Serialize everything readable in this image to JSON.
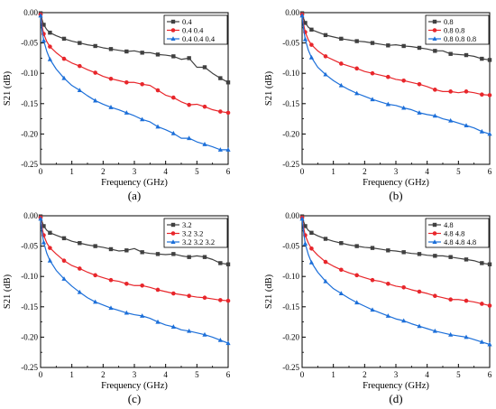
{
  "colors": {
    "black": "#404040",
    "red": "#e8262b",
    "blue": "#1c6fd9"
  },
  "icons": {
    "series_markers": [
      "square-marker-icon",
      "circle-marker-icon",
      "triangle-marker-icon"
    ]
  },
  "chart_data": [
    {
      "type": "line",
      "panel_label": "(a)",
      "xlabel": "Frequency (GHz)",
      "ylabel": "S21 (dB)",
      "xlim": [
        0,
        6
      ],
      "ylim": [
        -0.25,
        0
      ],
      "xticks": [
        "0",
        "1",
        "2",
        "3",
        "4",
        "5",
        "6"
      ],
      "yticks": [
        "0.00",
        "-0.05",
        "-0.10",
        "-0.15",
        "-0.20",
        "-0.25"
      ],
      "grid": false,
      "legend_position": "top-right",
      "x": [
        0,
        0.05,
        0.1,
        0.2,
        0.3,
        0.5,
        0.75,
        1,
        1.25,
        1.5,
        1.75,
        2,
        2.25,
        2.5,
        2.75,
        3,
        3.25,
        3.5,
        3.75,
        4,
        4.25,
        4.5,
        4.75,
        5,
        5.25,
        5.5,
        5.75,
        6
      ],
      "series": [
        {
          "name": "0.4",
          "color": "black",
          "marker": "square",
          "values": [
            -0.001,
            -0.012,
            -0.02,
            -0.028,
            -0.033,
            -0.038,
            -0.043,
            -0.047,
            -0.05,
            -0.053,
            -0.055,
            -0.058,
            -0.06,
            -0.062,
            -0.064,
            -0.063,
            -0.066,
            -0.066,
            -0.069,
            -0.07,
            -0.072,
            -0.077,
            -0.075,
            -0.09,
            -0.09,
            -0.1,
            -0.108,
            -0.115
          ]
        },
        {
          "name": "0.4  0.4",
          "color": "red",
          "marker": "circle",
          "values": [
            -0.003,
            -0.022,
            -0.035,
            -0.048,
            -0.056,
            -0.066,
            -0.076,
            -0.083,
            -0.088,
            -0.094,
            -0.099,
            -0.105,
            -0.109,
            -0.112,
            -0.115,
            -0.115,
            -0.118,
            -0.12,
            -0.128,
            -0.136,
            -0.14,
            -0.147,
            -0.152,
            -0.151,
            -0.155,
            -0.16,
            -0.163,
            -0.165
          ]
        },
        {
          "name": "0.4  0.4  0.4",
          "color": "blue",
          "marker": "triangle",
          "values": [
            -0.005,
            -0.03,
            -0.046,
            -0.064,
            -0.077,
            -0.093,
            -0.108,
            -0.12,
            -0.128,
            -0.137,
            -0.145,
            -0.151,
            -0.156,
            -0.16,
            -0.165,
            -0.17,
            -0.176,
            -0.18,
            -0.188,
            -0.193,
            -0.199,
            -0.207,
            -0.207,
            -0.213,
            -0.217,
            -0.221,
            -0.226,
            -0.226
          ]
        }
      ]
    },
    {
      "type": "line",
      "panel_label": "(b)",
      "xlabel": "Frequency (GHz)",
      "ylabel": "S21 (dB)",
      "xlim": [
        0,
        6
      ],
      "ylim": [
        -0.25,
        0
      ],
      "xticks": [
        "0",
        "1",
        "2",
        "3",
        "4",
        "5",
        "6"
      ],
      "yticks": [
        "0.00",
        "-0.05",
        "-0.10",
        "-0.15",
        "-0.20",
        "-0.25"
      ],
      "grid": false,
      "legend_position": "top-right",
      "x": [
        0,
        0.05,
        0.1,
        0.2,
        0.3,
        0.5,
        0.75,
        1,
        1.25,
        1.5,
        1.75,
        2,
        2.25,
        2.5,
        2.75,
        3,
        3.25,
        3.5,
        3.75,
        4,
        4.25,
        4.5,
        4.75,
        5,
        5.25,
        5.5,
        5.75,
        6
      ],
      "series": [
        {
          "name": "0.8",
          "color": "black",
          "marker": "square",
          "values": [
            -0.001,
            -0.01,
            -0.017,
            -0.024,
            -0.028,
            -0.032,
            -0.037,
            -0.04,
            -0.043,
            -0.045,
            -0.047,
            -0.048,
            -0.05,
            -0.052,
            -0.054,
            -0.053,
            -0.055,
            -0.056,
            -0.058,
            -0.06,
            -0.063,
            -0.063,
            -0.068,
            -0.069,
            -0.07,
            -0.072,
            -0.076,
            -0.078
          ]
        },
        {
          "name": "0.8  0.8",
          "color": "red",
          "marker": "circle",
          "values": [
            -0.003,
            -0.02,
            -0.032,
            -0.045,
            -0.053,
            -0.063,
            -0.072,
            -0.078,
            -0.084,
            -0.088,
            -0.092,
            -0.097,
            -0.1,
            -0.103,
            -0.106,
            -0.11,
            -0.112,
            -0.115,
            -0.118,
            -0.122,
            -0.127,
            -0.13,
            -0.13,
            -0.132,
            -0.13,
            -0.132,
            -0.135,
            -0.136
          ]
        },
        {
          "name": "0.8  0.8  0.8",
          "color": "blue",
          "marker": "triangle",
          "values": [
            -0.005,
            -0.028,
            -0.044,
            -0.062,
            -0.074,
            -0.09,
            -0.102,
            -0.112,
            -0.12,
            -0.127,
            -0.133,
            -0.138,
            -0.143,
            -0.147,
            -0.151,
            -0.153,
            -0.157,
            -0.16,
            -0.165,
            -0.168,
            -0.17,
            -0.175,
            -0.178,
            -0.182,
            -0.186,
            -0.19,
            -0.196,
            -0.2
          ]
        }
      ]
    },
    {
      "type": "line",
      "panel_label": "(c)",
      "xlabel": "Frequency (GHz)",
      "ylabel": "S21 (dB)",
      "xlim": [
        0,
        6
      ],
      "ylim": [
        -0.25,
        0
      ],
      "xticks": [
        "0",
        "1",
        "2",
        "3",
        "4",
        "5",
        "6"
      ],
      "yticks": [
        "0.00",
        "-0.05",
        "-0.10",
        "-0.15",
        "-0.20",
        "-0.25"
      ],
      "grid": false,
      "legend_position": "top-right",
      "x": [
        0,
        0.05,
        0.1,
        0.2,
        0.3,
        0.5,
        0.75,
        1,
        1.25,
        1.5,
        1.75,
        2,
        2.25,
        2.5,
        2.75,
        3,
        3.25,
        3.5,
        3.75,
        4,
        4.25,
        4.5,
        4.75,
        5,
        5.25,
        5.5,
        5.75,
        6
      ],
      "series": [
        {
          "name": "3.2",
          "color": "black",
          "marker": "square",
          "values": [
            -0.001,
            -0.01,
            -0.017,
            -0.024,
            -0.028,
            -0.032,
            -0.037,
            -0.042,
            -0.045,
            -0.048,
            -0.05,
            -0.052,
            -0.055,
            -0.058,
            -0.057,
            -0.054,
            -0.06,
            -0.062,
            -0.063,
            -0.064,
            -0.063,
            -0.066,
            -0.068,
            -0.066,
            -0.068,
            -0.072,
            -0.078,
            -0.08
          ]
        },
        {
          "name": "3.2  3.2",
          "color": "red",
          "marker": "circle",
          "values": [
            -0.003,
            -0.02,
            -0.032,
            -0.045,
            -0.053,
            -0.063,
            -0.074,
            -0.082,
            -0.087,
            -0.093,
            -0.098,
            -0.102,
            -0.106,
            -0.108,
            -0.112,
            -0.115,
            -0.115,
            -0.118,
            -0.122,
            -0.125,
            -0.128,
            -0.13,
            -0.132,
            -0.134,
            -0.135,
            -0.137,
            -0.139,
            -0.14
          ]
        },
        {
          "name": "3.2  3.2  3.2",
          "color": "blue",
          "marker": "triangle",
          "values": [
            -0.005,
            -0.028,
            -0.044,
            -0.062,
            -0.074,
            -0.09,
            -0.104,
            -0.116,
            -0.126,
            -0.135,
            -0.142,
            -0.147,
            -0.152,
            -0.156,
            -0.16,
            -0.163,
            -0.165,
            -0.169,
            -0.175,
            -0.18,
            -0.183,
            -0.188,
            -0.19,
            -0.193,
            -0.196,
            -0.2,
            -0.205,
            -0.21
          ]
        }
      ]
    },
    {
      "type": "line",
      "panel_label": "(d)",
      "xlabel": "Frequency (GHz)",
      "ylabel": "S21 (dB)",
      "xlim": [
        0,
        6
      ],
      "ylim": [
        -0.25,
        0
      ],
      "xticks": [
        "0",
        "1",
        "2",
        "3",
        "4",
        "5",
        "6"
      ],
      "yticks": [
        "0.00",
        "-0.05",
        "-0.10",
        "-0.15",
        "-0.20",
        "-0.25"
      ],
      "grid": false,
      "legend_position": "top-right",
      "x": [
        0,
        0.05,
        0.1,
        0.2,
        0.3,
        0.5,
        0.75,
        1,
        1.25,
        1.5,
        1.75,
        2,
        2.25,
        2.5,
        2.75,
        3,
        3.25,
        3.5,
        3.75,
        4,
        4.25,
        4.5,
        4.75,
        5,
        5.25,
        5.5,
        5.75,
        6
      ],
      "series": [
        {
          "name": "4.8",
          "color": "black",
          "marker": "square",
          "values": [
            -0.001,
            -0.01,
            -0.017,
            -0.024,
            -0.028,
            -0.033,
            -0.038,
            -0.042,
            -0.045,
            -0.048,
            -0.05,
            -0.052,
            -0.053,
            -0.055,
            -0.057,
            -0.058,
            -0.06,
            -0.062,
            -0.063,
            -0.065,
            -0.066,
            -0.066,
            -0.068,
            -0.07,
            -0.072,
            -0.074,
            -0.078,
            -0.08
          ]
        },
        {
          "name": "4.8  4.8",
          "color": "red",
          "marker": "circle",
          "values": [
            -0.003,
            -0.02,
            -0.032,
            -0.045,
            -0.054,
            -0.065,
            -0.076,
            -0.083,
            -0.089,
            -0.094,
            -0.098,
            -0.102,
            -0.106,
            -0.108,
            -0.112,
            -0.116,
            -0.118,
            -0.122,
            -0.125,
            -0.128,
            -0.132,
            -0.135,
            -0.138,
            -0.138,
            -0.14,
            -0.142,
            -0.145,
            -0.148
          ]
        },
        {
          "name": "4.8  4.8  4.8",
          "color": "blue",
          "marker": "triangle",
          "values": [
            -0.005,
            -0.028,
            -0.046,
            -0.064,
            -0.077,
            -0.093,
            -0.108,
            -0.12,
            -0.128,
            -0.136,
            -0.143,
            -0.149,
            -0.155,
            -0.16,
            -0.165,
            -0.17,
            -0.173,
            -0.178,
            -0.182,
            -0.186,
            -0.19,
            -0.193,
            -0.196,
            -0.198,
            -0.2,
            -0.204,
            -0.208,
            -0.212
          ]
        }
      ]
    }
  ]
}
